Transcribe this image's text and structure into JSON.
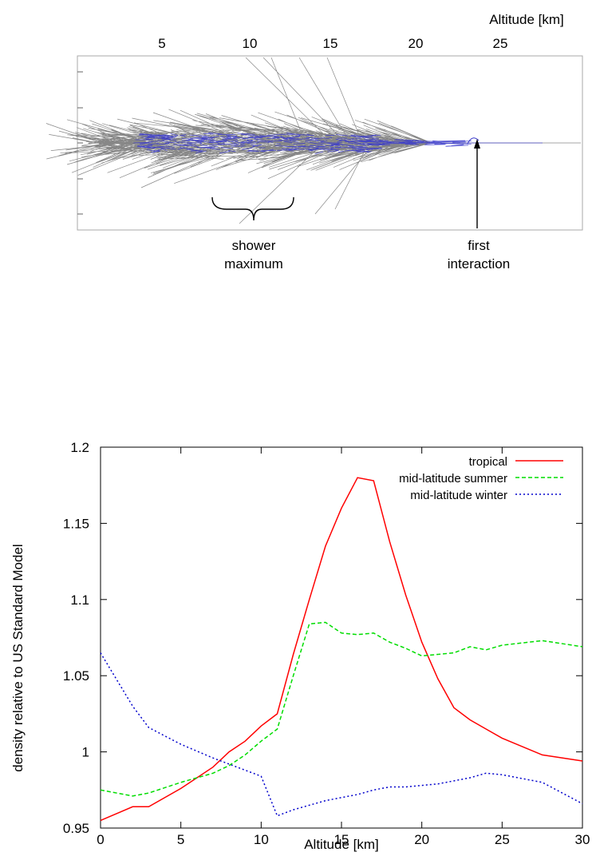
{
  "shower_panel": {
    "axis_label": "Altitude [km]",
    "ticks": [
      "5",
      "10",
      "15",
      "20",
      "25"
    ],
    "annotations": {
      "shower_maximum_line1": "shower",
      "shower_maximum_line2": "maximum",
      "first_interaction_line1": "first",
      "first_interaction_line2": "interaction"
    },
    "colors": {
      "tracks": "#7a7a7a",
      "em_tracks": "#3a3acc"
    }
  },
  "chart_data": {
    "type": "line",
    "title": "",
    "xlabel": "Altitude [km]",
    "ylabel": "density relative to US Standard Model",
    "xlim": [
      0,
      30
    ],
    "ylim": [
      0.95,
      1.2
    ],
    "xticks": [
      0,
      5,
      10,
      15,
      20,
      25,
      30
    ],
    "yticks": [
      0.95,
      1,
      1.05,
      1.1,
      1.15,
      1.2
    ],
    "ytick_labels": [
      "0.95",
      "1",
      "1.05",
      "1.1",
      "1.15",
      "1.2"
    ],
    "legend_position": "top-right",
    "grid": false,
    "series": [
      {
        "name": "tropical",
        "color": "#ff0000",
        "dash": "solid",
        "x": [
          0,
          2,
          3,
          5,
          7,
          8,
          9,
          10,
          11,
          12,
          13,
          14,
          15,
          16,
          17,
          18,
          19,
          20,
          21,
          22,
          23,
          24,
          25,
          27.5,
          30
        ],
        "y": [
          0.955,
          0.964,
          0.964,
          0.976,
          0.99,
          1.0,
          1.007,
          1.017,
          1.025,
          1.064,
          1.1,
          1.135,
          1.16,
          1.18,
          1.178,
          1.138,
          1.103,
          1.072,
          1.048,
          1.029,
          1.021,
          1.015,
          1.009,
          0.998,
          0.994
        ]
      },
      {
        "name": "mid-latitude summer",
        "color": "#00dd00",
        "dash": "dashed",
        "x": [
          0,
          2,
          3,
          5,
          7,
          8,
          9,
          10,
          11,
          12,
          13,
          14,
          15,
          16,
          17,
          18,
          19,
          20,
          21,
          22,
          23,
          24,
          25,
          27.5,
          30
        ],
        "y": [
          0.975,
          0.971,
          0.973,
          0.98,
          0.986,
          0.991,
          0.998,
          1.007,
          1.015,
          1.05,
          1.084,
          1.085,
          1.078,
          1.077,
          1.078,
          1.072,
          1.068,
          1.063,
          1.064,
          1.065,
          1.069,
          1.067,
          1.07,
          1.073,
          1.069
        ]
      },
      {
        "name": "mid-latitude winter",
        "color": "#0000cc",
        "dash": "dotted",
        "x": [
          0,
          2,
          3,
          5,
          7,
          8,
          9,
          10,
          11,
          12,
          13,
          14,
          15,
          16,
          17,
          18,
          19,
          20,
          21,
          22,
          23,
          24,
          25,
          27.5,
          30
        ],
        "y": [
          1.065,
          1.03,
          1.016,
          1.005,
          0.996,
          0.992,
          0.988,
          0.984,
          0.958,
          0.962,
          0.965,
          0.968,
          0.97,
          0.972,
          0.975,
          0.977,
          0.977,
          0.978,
          0.979,
          0.981,
          0.983,
          0.986,
          0.985,
          0.98,
          0.966
        ]
      }
    ]
  }
}
